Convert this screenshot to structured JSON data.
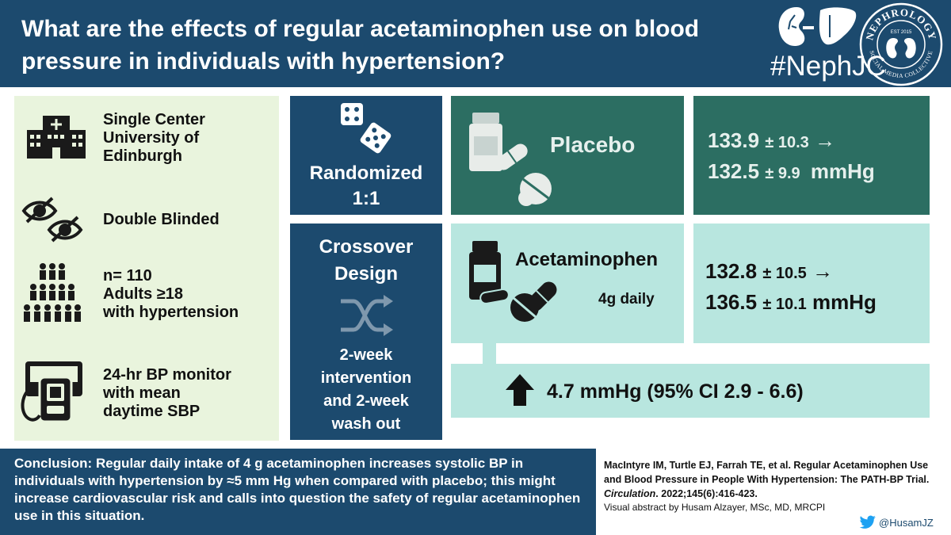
{
  "header": {
    "title": "What are the effects of regular acetaminophen use on blood pressure in individuals with hypertension?",
    "hashtag": "#NephJC",
    "logo_text_top": "NEPHROLOGY",
    "logo_text_bottom": "SOCIAL MEDIA COLLECTIVE",
    "logo_est": "EST 2015"
  },
  "design": {
    "site": [
      "Single Center",
      "University of",
      "Edinburgh"
    ],
    "blinding": "Double Blinded",
    "population": [
      "n= 110",
      "Adults ≥18",
      "with hypertension"
    ],
    "measure": [
      "24-hr BP monitor",
      "with mean",
      "daytime SBP"
    ]
  },
  "method": {
    "randomized": "Randomized",
    "ratio": "1:1",
    "crossover": [
      "Crossover",
      "Design"
    ],
    "duration": [
      "2-week",
      "intervention",
      "and 2-week",
      "wash out"
    ]
  },
  "arms": {
    "placebo": {
      "label": "Placebo",
      "before": "133.9",
      "before_sd": "± 10.3",
      "after": "132.5",
      "after_sd": "± 9.9",
      "unit": "mmHg"
    },
    "acetaminophen": {
      "label": "Acetaminophen",
      "dose": "4g daily",
      "before": "132.8",
      "before_sd": "± 10.5",
      "after": "136.5",
      "after_sd": "± 10.1",
      "unit": "mmHg"
    },
    "arrow": "→"
  },
  "result": "4.7 mmHg (95% CI 2.9 - 6.6)",
  "conclusion": "Conclusion: Regular daily intake of 4 g acetaminophen increases systolic BP in individuals with hypertension by ≈5 mm Hg when compared with placebo; this might increase cardiovascular risk and calls into question the safety of regular acetaminophen use in this situation.",
  "citation": {
    "authors_title": "MacIntyre IM, Turtle EJ, Farrah TE, et al. Regular Acetaminophen Use and Blood Pressure in People With Hypertension: The PATH-BP Trial.",
    "journal": "Circulation",
    "ref": ". 2022;145(6):416-423."
  },
  "credit": "Visual abstract  by Husam Alzayer, MSc,  MD, MRCPI",
  "twitter_handle": "@HusamJZ",
  "colors": {
    "navy": "#1c4a6e",
    "dark_green": "#2c6e62",
    "light_teal": "#b8e6df",
    "light_green": "#e9f4dd"
  }
}
